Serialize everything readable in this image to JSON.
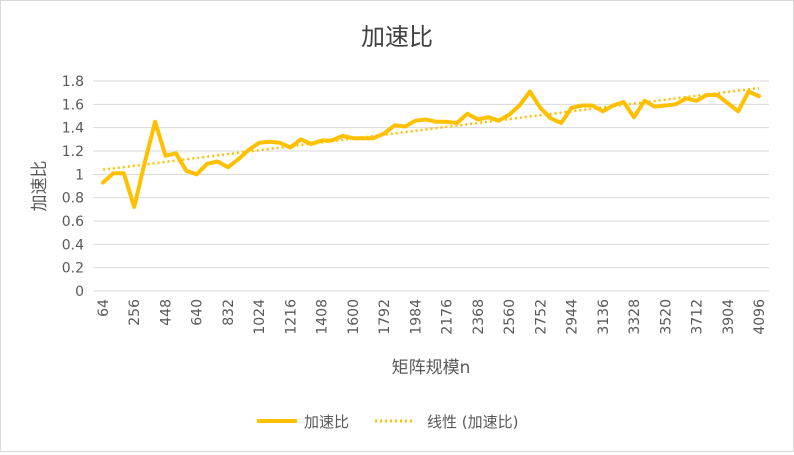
{
  "chart_data": {
    "type": "line",
    "title": "加速比",
    "xlabel": "矩阵规模n",
    "ylabel": "加速比",
    "ylim": [
      0,
      1.8
    ],
    "y_ticks": [
      "0",
      "0.2",
      "0.4",
      "0.6",
      "0.8",
      "1",
      "1.2",
      "1.4",
      "1.6",
      "1.8"
    ],
    "x_tick_labels": [
      "64",
      "256",
      "448",
      "640",
      "832",
      "1024",
      "1216",
      "1408",
      "1600",
      "1792",
      "1984",
      "2176",
      "2368",
      "2560",
      "2752",
      "2944",
      "3136",
      "3328",
      "3520",
      "3712",
      "3904",
      "4096"
    ],
    "x": [
      64,
      128,
      192,
      256,
      320,
      384,
      448,
      512,
      576,
      640,
      704,
      768,
      832,
      896,
      960,
      1024,
      1088,
      1152,
      1216,
      1280,
      1344,
      1408,
      1472,
      1536,
      1600,
      1664,
      1728,
      1792,
      1856,
      1920,
      1984,
      2048,
      2112,
      2176,
      2240,
      2304,
      2368,
      2432,
      2496,
      2560,
      2624,
      2688,
      2752,
      2816,
      2880,
      2944,
      3008,
      3072,
      3136,
      3200,
      3264,
      3328,
      3392,
      3456,
      3520,
      3584,
      3648,
      3712,
      3776,
      3840,
      3904,
      3968,
      4032,
      4096
    ],
    "series": [
      {
        "name": "加速比",
        "color": "#FFC000",
        "style": "solid",
        "values": [
          0.93,
          1.01,
          1.01,
          0.72,
          1.1,
          1.45,
          1.16,
          1.18,
          1.03,
          1.0,
          1.09,
          1.11,
          1.06,
          1.13,
          1.21,
          1.27,
          1.28,
          1.27,
          1.23,
          1.3,
          1.26,
          1.29,
          1.29,
          1.33,
          1.31,
          1.31,
          1.31,
          1.35,
          1.42,
          1.41,
          1.46,
          1.47,
          1.45,
          1.45,
          1.44,
          1.52,
          1.47,
          1.49,
          1.46,
          1.51,
          1.59,
          1.71,
          1.57,
          1.48,
          1.44,
          1.57,
          1.59,
          1.59,
          1.54,
          1.59,
          1.62,
          1.49,
          1.63,
          1.58,
          1.59,
          1.6,
          1.65,
          1.63,
          1.68,
          1.68,
          1.61,
          1.54,
          1.71,
          1.67
        ]
      },
      {
        "name": "线性 (加速比)",
        "color": "#FFC000",
        "style": "dotted",
        "trend_endpoints": [
          1.04,
          1.74
        ]
      }
    ],
    "grid": true,
    "legend_position": "bottom"
  }
}
